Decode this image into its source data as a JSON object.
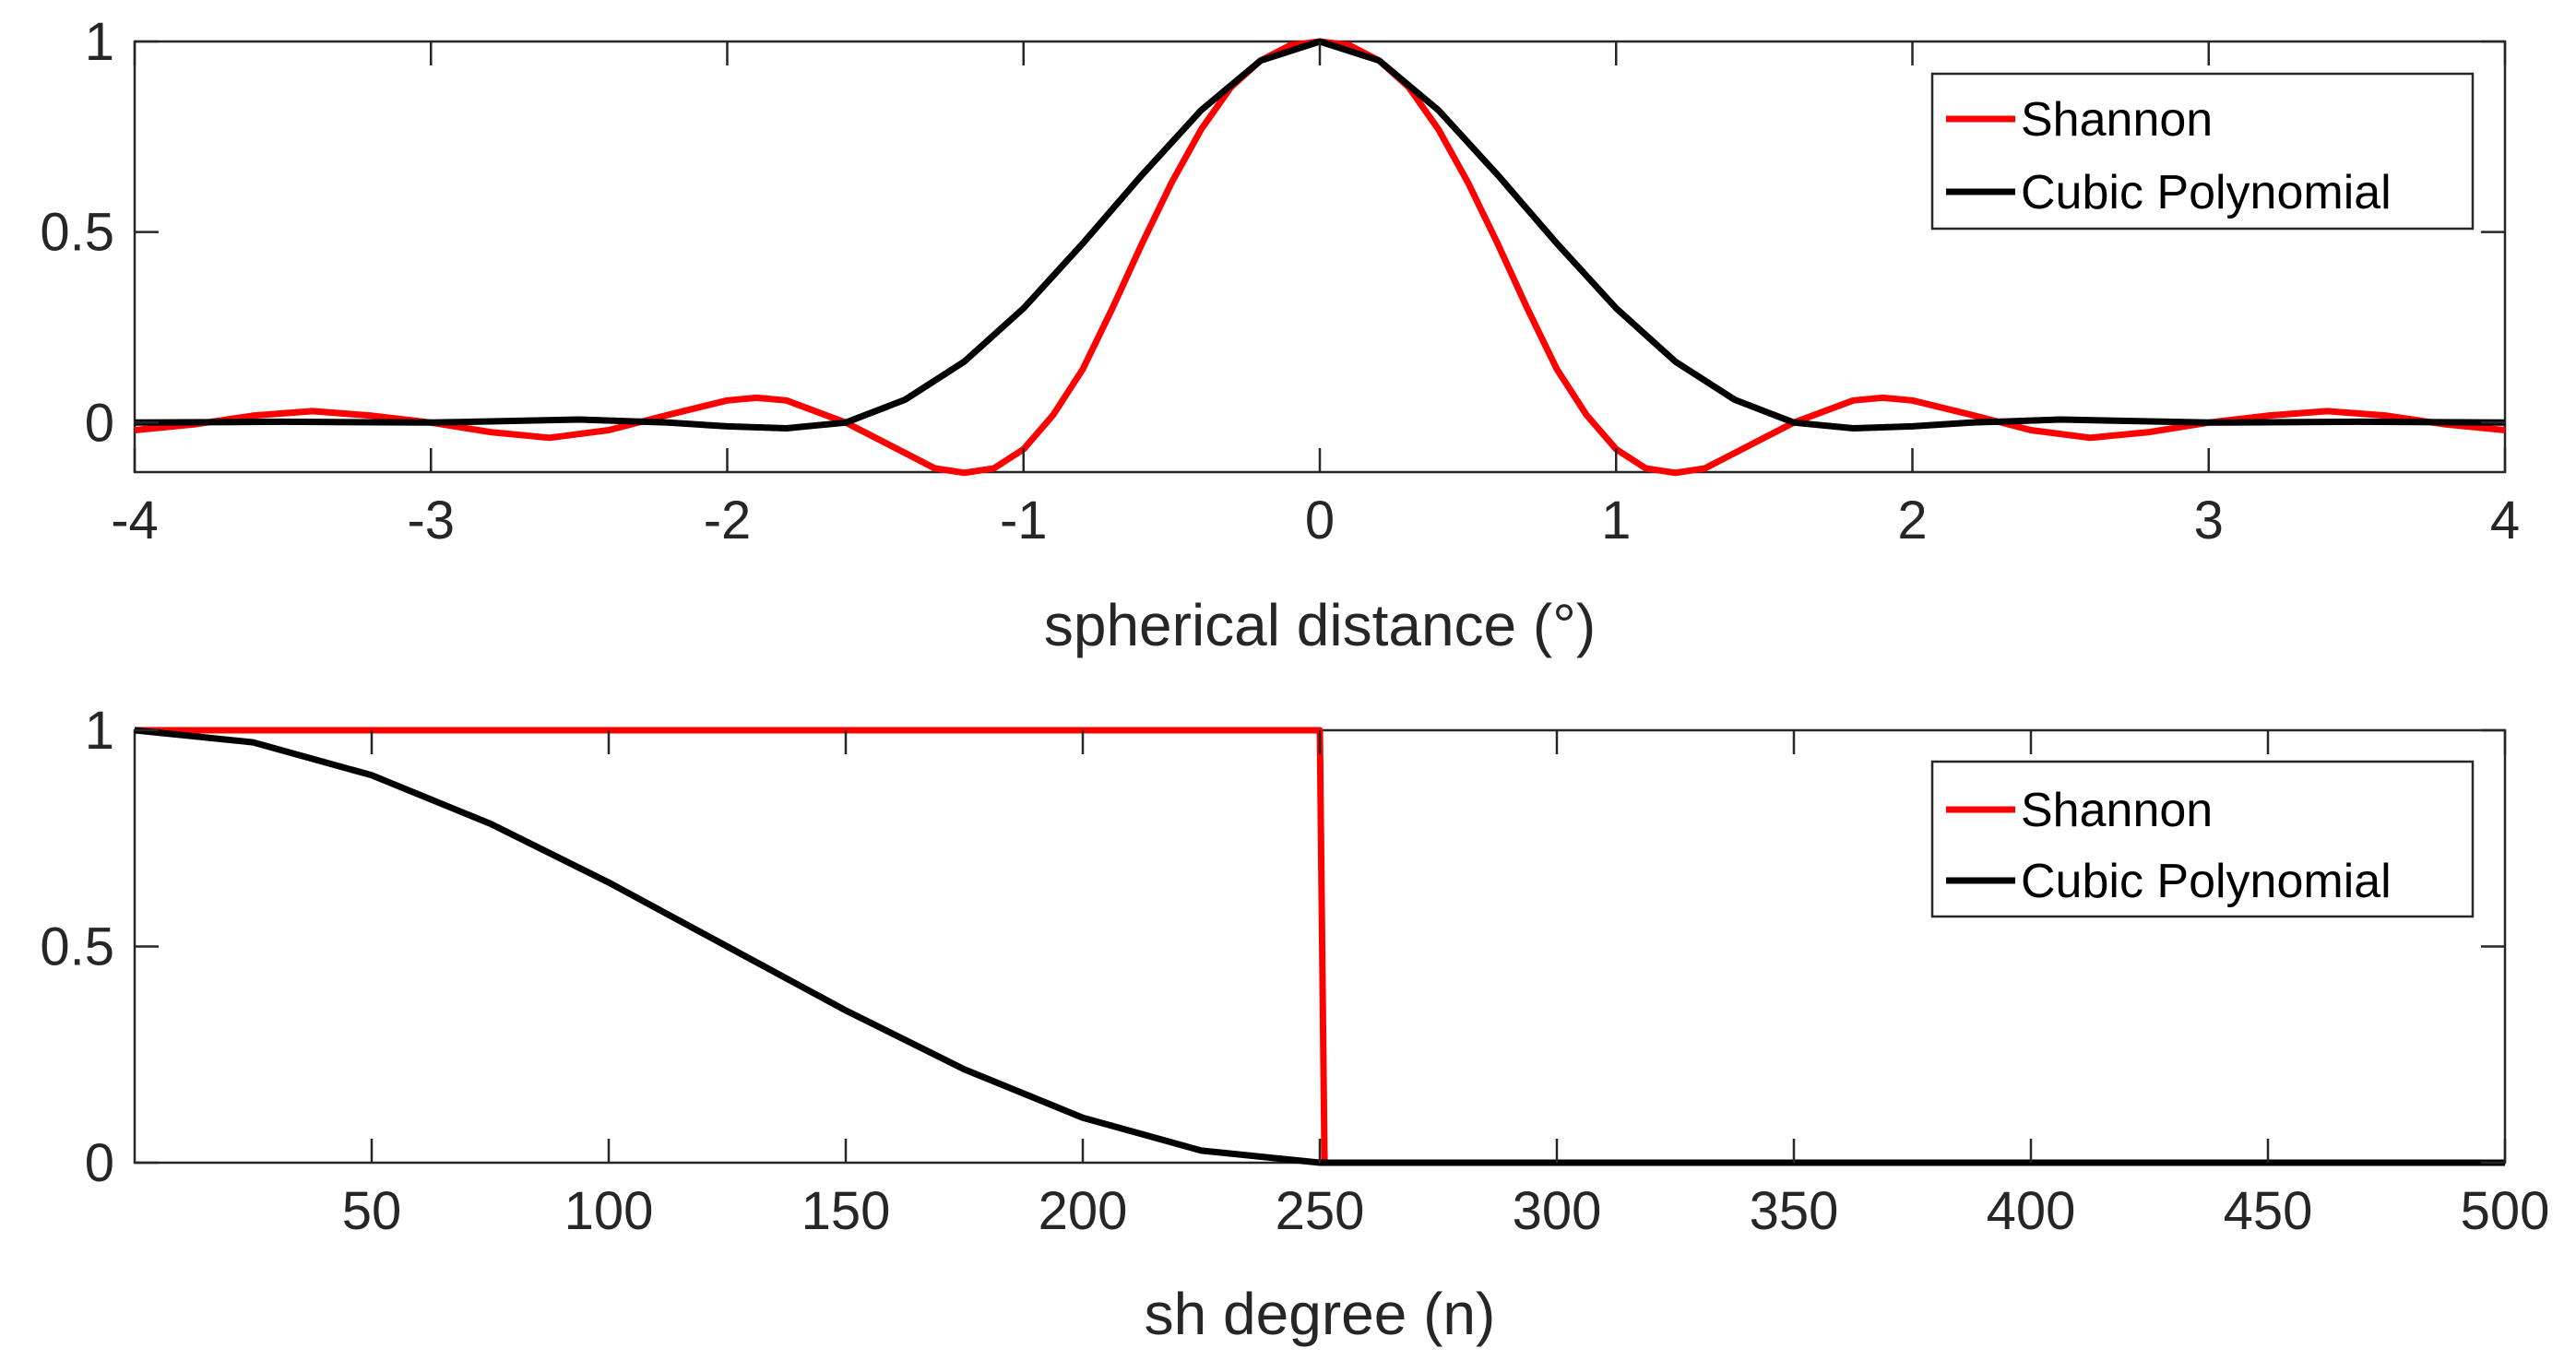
{
  "chart_data": [
    {
      "type": "line",
      "title": "",
      "xlabel": "spherical distance (°)",
      "ylabel": "",
      "xlim": [
        -4,
        4
      ],
      "ylim": [
        -0.13,
        1
      ],
      "xticks": [
        -4,
        -3,
        -2,
        -1,
        0,
        1,
        2,
        3,
        4
      ],
      "xtick_labels": [
        "-4",
        "-3",
        "-2",
        "-1",
        "0",
        "1",
        "2",
        "3",
        "4"
      ],
      "yticks": [
        0,
        0.5,
        1
      ],
      "ytick_labels": [
        "0",
        "0.5",
        "1"
      ],
      "legend_position": "top-right",
      "series": [
        {
          "name": "Shannon",
          "color": "#ff0000",
          "x": [
            -4,
            -3.8,
            -3.6,
            -3.4,
            -3.2,
            -3,
            -2.8,
            -2.6,
            -2.4,
            -2.2,
            -2,
            -1.9,
            -1.8,
            -1.6,
            -1.4,
            -1.3,
            -1.2,
            -1.1,
            -1,
            -0.9,
            -0.8,
            -0.7,
            -0.6,
            -0.5,
            -0.4,
            -0.3,
            -0.2,
            -0.1,
            0,
            0.1,
            0.2,
            0.3,
            0.4,
            0.5,
            0.6,
            0.7,
            0.8,
            0.9,
            1,
            1.1,
            1.2,
            1.3,
            1.4,
            1.6,
            1.8,
            1.9,
            2,
            2.2,
            2.4,
            2.6,
            2.8,
            3,
            3.2,
            3.4,
            3.6,
            3.8,
            4
          ],
          "y": [
            -0.02,
            -0.005,
            0.018,
            0.03,
            0.018,
            0.0,
            -0.025,
            -0.04,
            -0.02,
            0.02,
            0.058,
            0.065,
            0.058,
            0.0,
            -0.08,
            -0.12,
            -0.132,
            -0.12,
            -0.07,
            0.02,
            0.14,
            0.3,
            0.47,
            0.63,
            0.77,
            0.88,
            0.95,
            0.99,
            1.0,
            0.99,
            0.95,
            0.88,
            0.77,
            0.63,
            0.47,
            0.3,
            0.14,
            0.02,
            -0.07,
            -0.12,
            -0.132,
            -0.12,
            -0.08,
            0.0,
            0.058,
            0.065,
            0.058,
            0.02,
            -0.02,
            -0.04,
            -0.025,
            0.0,
            0.018,
            0.03,
            0.018,
            -0.005,
            -0.02
          ]
        },
        {
          "name": "Cubic Polynomial",
          "color": "#000000",
          "x": [
            -4,
            -3.5,
            -3,
            -2.5,
            -2.2,
            -2,
            -1.8,
            -1.6,
            -1.4,
            -1.2,
            -1,
            -0.8,
            -0.6,
            -0.4,
            -0.2,
            0,
            0.2,
            0.4,
            0.6,
            0.8,
            1,
            1.2,
            1.4,
            1.6,
            1.8,
            2,
            2.2,
            2.5,
            3,
            3.5,
            4
          ],
          "y": [
            0.0,
            0.002,
            0.0,
            0.008,
            0.0,
            -0.01,
            -0.015,
            0.0,
            0.06,
            0.16,
            0.3,
            0.47,
            0.65,
            0.82,
            0.95,
            1.0,
            0.95,
            0.82,
            0.65,
            0.47,
            0.3,
            0.16,
            0.06,
            0.0,
            -0.015,
            -0.01,
            0.0,
            0.008,
            0.0,
            0.002,
            0.0
          ]
        }
      ]
    },
    {
      "type": "line",
      "title": "",
      "xlabel": "sh degree (n)",
      "ylabel": "",
      "xlim": [
        0,
        500
      ],
      "ylim": [
        0,
        1
      ],
      "xticks": [
        50,
        100,
        150,
        200,
        250,
        300,
        350,
        400,
        450,
        500
      ],
      "xtick_labels": [
        "50",
        "100",
        "150",
        "200",
        "250",
        "300",
        "350",
        "400",
        "450",
        "500"
      ],
      "yticks": [
        0,
        0.5,
        1
      ],
      "ytick_labels": [
        "0",
        "0.5",
        "1"
      ],
      "legend_position": "top-right",
      "series": [
        {
          "name": "Shannon",
          "color": "#ff0000",
          "x": [
            0,
            250,
            251,
            500
          ],
          "y": [
            1,
            1,
            0,
            0
          ]
        },
        {
          "name": "Cubic Polynomial",
          "color": "#000000",
          "x": [
            0,
            25,
            50,
            75,
            100,
            125,
            150,
            175,
            200,
            225,
            250,
            300,
            350,
            400,
            450,
            500
          ],
          "y": [
            1.0,
            0.972,
            0.896,
            0.784,
            0.648,
            0.5,
            0.352,
            0.216,
            0.104,
            0.028,
            0.0,
            0.0,
            0.0,
            0.0,
            0.0,
            0.0
          ]
        }
      ]
    }
  ]
}
